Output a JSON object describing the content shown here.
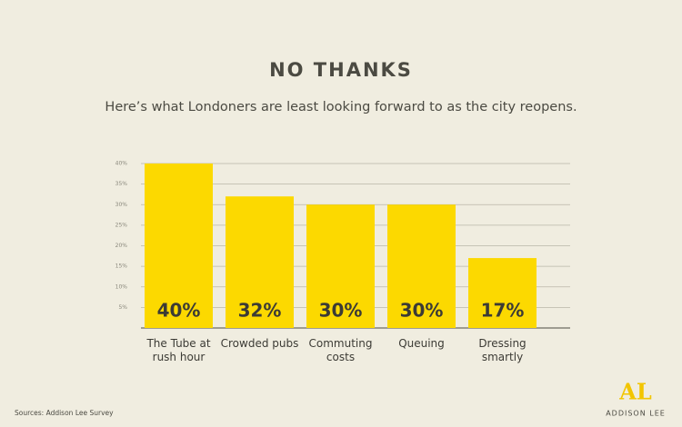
{
  "chart_data": {
    "type": "bar",
    "title": "NO THANKS",
    "subtitle": "Here’s what Londoners are least looking forward to as the city reopens.",
    "categories": [
      "The Tube at rush hour",
      "Crowded pubs",
      "Commuting costs",
      "Queuing",
      "Dressing smartly"
    ],
    "values": [
      40,
      32,
      30,
      30,
      17
    ],
    "value_labels": [
      "40%",
      "32%",
      "30%",
      "30%",
      "17%"
    ],
    "color": "#fcd900",
    "ylim": [
      0,
      40
    ],
    "yticks": [
      {
        "value": 5,
        "label": "5%"
      },
      {
        "value": 10,
        "label": "10%"
      },
      {
        "value": 15,
        "label": "15%"
      },
      {
        "value": 20,
        "label": "20%"
      },
      {
        "value": 25,
        "label": "25%"
      },
      {
        "value": 30,
        "label": "30%"
      },
      {
        "value": 35,
        "label": "35%"
      },
      {
        "value": 40,
        "label": "40%"
      }
    ],
    "grid": true,
    "source": "Sources: Addison Lee Survey"
  },
  "brand": {
    "mark": "AL",
    "name": "ADDISON LEE"
  }
}
